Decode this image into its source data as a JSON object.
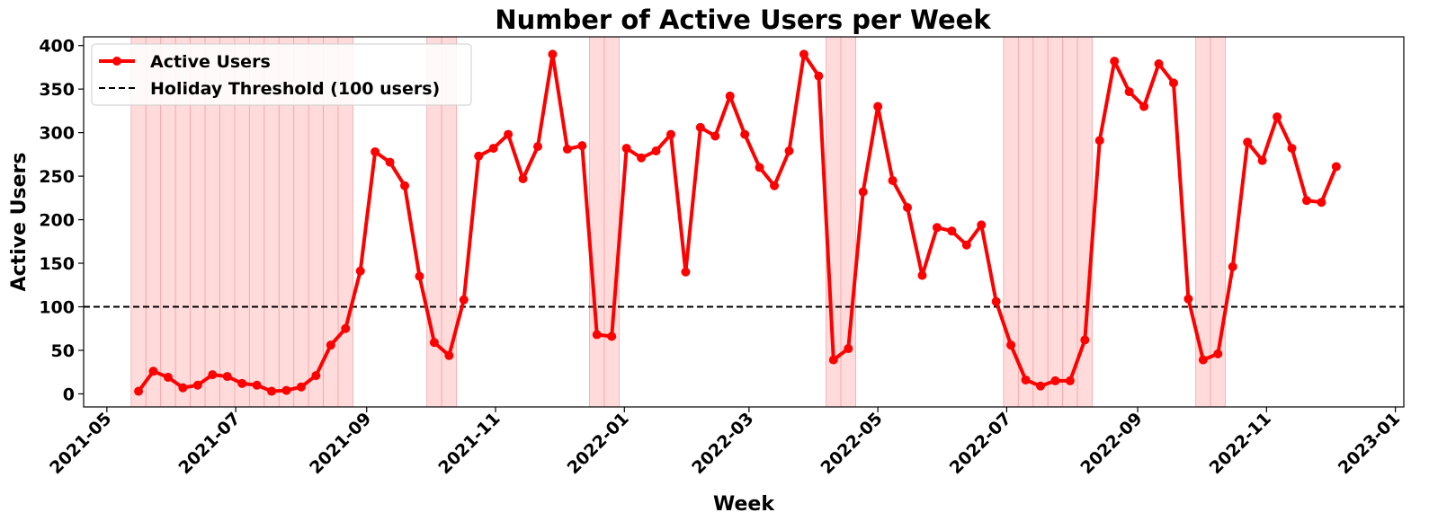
{
  "chart_data": {
    "type": "line",
    "title": "Number of Active Users per Week",
    "xlabel": "Week",
    "ylabel": "Active Users",
    "xlim": [
      "2021-04-20",
      "2023-01-05"
    ],
    "ylim": [
      -15,
      410
    ],
    "x_ticks": [
      "2021-05",
      "2021-07",
      "2021-09",
      "2021-11",
      "2022-01",
      "2022-03",
      "2022-05",
      "2022-07",
      "2022-09",
      "2022-11",
      "2023-01"
    ],
    "y_ticks": [
      0,
      50,
      100,
      150,
      200,
      250,
      300,
      350,
      400
    ],
    "grid": false,
    "legend_position": "upper-left",
    "threshold": {
      "value": 100,
      "label": "Holiday Threshold (100 users)",
      "color": "#000000"
    },
    "series": [
      {
        "name": "Active Users",
        "color": "#ff0000",
        "x": [
          "2021-05-16",
          "2021-05-23",
          "2021-05-30",
          "2021-06-06",
          "2021-06-13",
          "2021-06-20",
          "2021-06-27",
          "2021-07-04",
          "2021-07-11",
          "2021-07-18",
          "2021-07-25",
          "2021-08-01",
          "2021-08-08",
          "2021-08-15",
          "2021-08-22",
          "2021-08-29",
          "2021-09-05",
          "2021-09-12",
          "2021-09-19",
          "2021-09-26",
          "2021-10-03",
          "2021-10-10",
          "2021-10-17",
          "2021-10-24",
          "2021-10-31",
          "2021-11-07",
          "2021-11-14",
          "2021-11-21",
          "2021-11-28",
          "2021-12-05",
          "2021-12-12",
          "2021-12-19",
          "2021-12-26",
          "2022-01-02",
          "2022-01-09",
          "2022-01-16",
          "2022-01-23",
          "2022-01-30",
          "2022-02-06",
          "2022-02-13",
          "2022-02-20",
          "2022-02-27",
          "2022-03-06",
          "2022-03-13",
          "2022-03-20",
          "2022-03-27",
          "2022-04-03",
          "2022-04-10",
          "2022-04-17",
          "2022-04-24",
          "2022-05-01",
          "2022-05-08",
          "2022-05-15",
          "2022-05-22",
          "2022-05-29",
          "2022-06-05",
          "2022-06-12",
          "2022-06-19",
          "2022-06-26",
          "2022-07-03",
          "2022-07-10",
          "2022-07-17",
          "2022-07-24",
          "2022-07-31",
          "2022-08-07",
          "2022-08-14",
          "2022-08-21",
          "2022-08-28",
          "2022-09-04",
          "2022-09-11",
          "2022-09-18",
          "2022-09-25",
          "2022-10-02",
          "2022-10-09",
          "2022-10-16",
          "2022-10-23",
          "2022-10-30",
          "2022-11-06",
          "2022-11-13",
          "2022-11-20",
          "2022-11-27",
          "2022-12-04"
        ],
        "values": [
          3,
          26,
          19,
          7,
          10,
          22,
          20,
          12,
          10,
          3,
          4,
          8,
          21,
          56,
          75,
          141,
          278,
          266,
          239,
          135,
          59,
          44,
          108,
          273,
          282,
          298,
          247,
          284,
          390,
          281,
          285,
          68,
          66,
          282,
          271,
          279,
          298,
          140,
          306,
          296,
          342,
          298,
          260,
          239,
          279,
          390,
          365,
          39,
          52,
          232,
          330,
          245,
          214,
          136,
          191,
          187,
          171,
          194,
          106,
          56,
          16,
          9,
          15,
          15,
          62,
          291,
          382,
          347,
          330,
          379,
          357,
          109,
          39,
          46,
          146,
          289,
          268,
          318,
          282,
          222,
          220,
          261
        ]
      }
    ],
    "holiday_weeks": [
      "2021-05-16",
      "2021-05-23",
      "2021-05-30",
      "2021-06-06",
      "2021-06-13",
      "2021-06-20",
      "2021-06-27",
      "2021-07-04",
      "2021-07-11",
      "2021-07-18",
      "2021-07-25",
      "2021-08-01",
      "2021-08-08",
      "2021-08-15",
      "2021-08-22",
      "2021-10-03",
      "2021-10-10",
      "2021-12-19",
      "2021-12-26",
      "2022-04-10",
      "2022-04-17",
      "2022-07-03",
      "2022-07-10",
      "2022-07-17",
      "2022-07-24",
      "2022-07-31",
      "2022-08-07",
      "2022-10-02",
      "2022-10-09"
    ],
    "holiday_color": "#ffcccc"
  }
}
